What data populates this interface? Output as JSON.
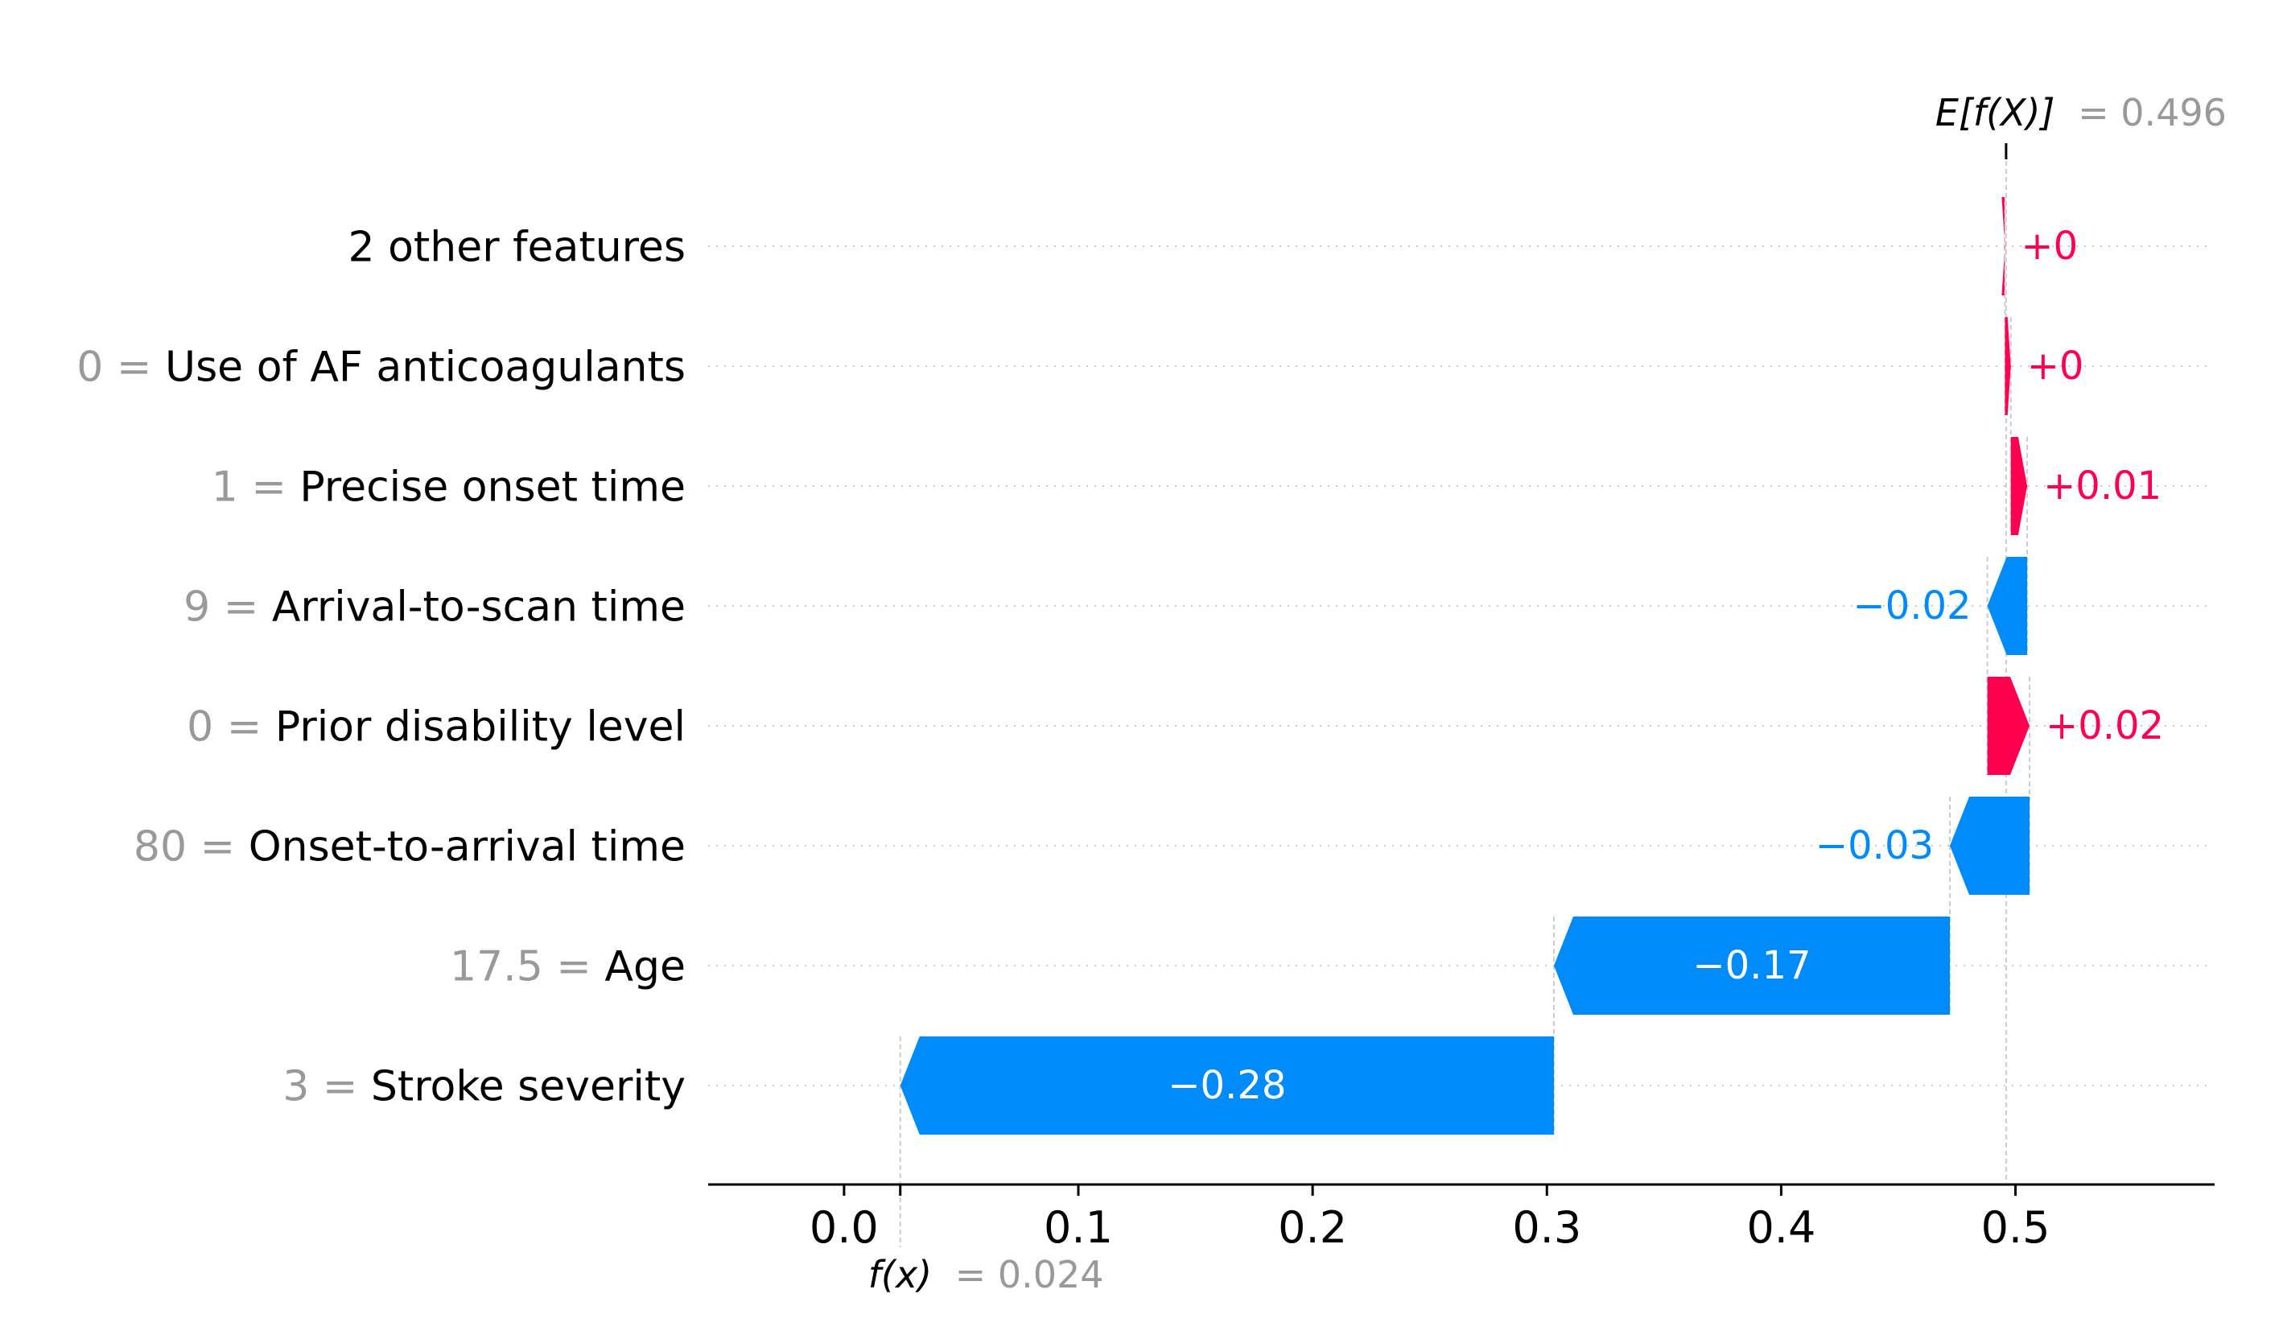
{
  "chart_data": {
    "type": "bar",
    "chart_kind": "waterfall",
    "orientation": "horizontal",
    "base_value": 0.496,
    "base_label_name": "E[f(X)]",
    "base_label_eq": "= 0.496",
    "output_value": 0.024,
    "output_label_name": "f(x)",
    "output_label_eq": "= 0.024",
    "xlim": [
      -0.058,
      0.585
    ],
    "grid": false,
    "features": [
      {
        "value_text": "",
        "name": "2 other features",
        "shap": 0.0002,
        "label": "+0"
      },
      {
        "value_text": "0 =",
        "name": "Use of AF anticoagulants",
        "shap": 0.0025,
        "label": "+0"
      },
      {
        "value_text": "1 =",
        "name": "Precise onset time",
        "shap": 0.007,
        "label": "+0.01"
      },
      {
        "value_text": "9 =",
        "name": "Arrival-to-scan time",
        "shap": -0.017,
        "label": "−0.02"
      },
      {
        "value_text": "0 =",
        "name": "Prior disability level",
        "shap": 0.018,
        "label": "+0.02"
      },
      {
        "value_text": "80 =",
        "name": "Onset-to-arrival time",
        "shap": -0.034,
        "label": "−0.03"
      },
      {
        "value_text": "17.5 =",
        "name": "Age",
        "shap": -0.169,
        "label": "−0.17"
      },
      {
        "value_text": "3 =",
        "name": "Stroke severity",
        "shap": -0.279,
        "label": "−0.28"
      }
    ],
    "x_ticks": [
      {
        "value": 0.0,
        "label": "0.0"
      },
      {
        "value": 0.1,
        "label": "0.1"
      },
      {
        "value": 0.2,
        "label": "0.2"
      },
      {
        "value": 0.3,
        "label": "0.3"
      },
      {
        "value": 0.4,
        "label": "0.4"
      },
      {
        "value": 0.5,
        "label": "0.5"
      }
    ],
    "colors": {
      "positive": "#ff0051",
      "negative": "#008bfb",
      "value_text": "#999999",
      "text": "#000000",
      "guide": "#cccccc"
    }
  }
}
